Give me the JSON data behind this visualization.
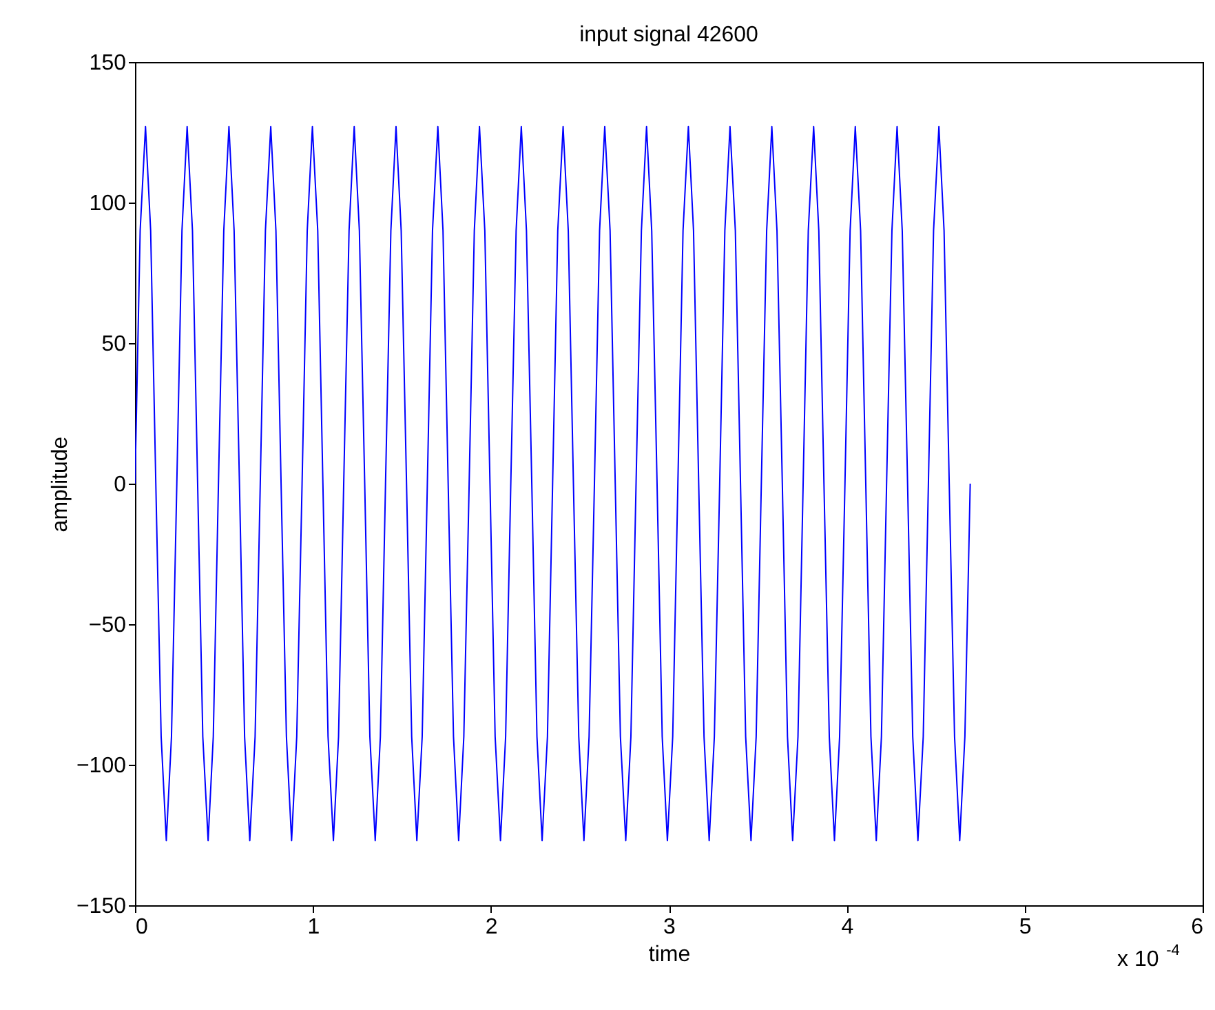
{
  "chart_data": {
    "type": "line",
    "title": "input signal 42600",
    "xlabel": "time",
    "ylabel": "amplitude",
    "xlim": [
      0,
      6
    ],
    "xticks": [
      0,
      1,
      2,
      3,
      4,
      5,
      6
    ],
    "ylim": [
      -150,
      150
    ],
    "yticks": [
      -150,
      -100,
      -50,
      0,
      50,
      100,
      150
    ],
    "grid": false,
    "marker": "none",
    "line_style": "solid",
    "annotations": [
      "x 10$^{-4}$"
    ],
    "x": [
      0,
      0.029,
      0.059,
      0.088,
      0.117,
      0.147,
      0.176,
      0.205,
      0.235,
      0.264,
      0.293,
      0.323,
      0.352,
      0.381,
      0.411,
      0.44,
      0.469,
      0.499,
      0.528,
      0.557,
      0.587,
      0.616,
      0.645,
      0.675,
      0.704,
      0.733,
      0.763,
      0.792,
      0.821,
      0.851,
      0.88,
      0.909,
      0.939,
      0.968,
      0.997,
      1.027,
      1.056,
      1.085,
      1.115,
      1.144,
      1.173,
      1.203,
      1.232,
      1.261,
      1.291,
      1.32,
      1.35,
      1.379,
      1.408,
      1.438,
      1.467,
      1.496,
      1.526,
      1.555,
      1.584,
      1.614,
      1.643,
      1.672,
      1.702,
      1.731,
      1.76,
      1.79,
      1.819,
      1.848,
      1.878,
      1.907,
      1.936,
      1.966,
      1.995,
      2.024,
      2.054,
      2.083,
      2.112,
      2.142,
      2.171,
      2.2,
      2.23,
      2.259,
      2.288,
      2.318,
      2.347,
      2.376,
      2.406,
      2.435,
      2.464,
      2.494,
      2.523,
      2.552,
      2.582,
      2.611,
      2.64,
      2.67,
      2.699,
      2.728,
      2.758,
      2.787,
      2.816,
      2.846,
      2.875,
      2.904,
      2.934,
      2.963,
      2.992,
      3.022,
      3.051,
      3.08,
      3.11,
      3.139,
      3.168,
      3.198,
      3.227,
      3.256,
      3.286,
      3.315,
      3.344,
      3.374,
      3.403,
      3.432,
      3.462,
      3.491,
      3.52,
      3.55,
      3.579,
      3.608,
      3.638,
      3.667,
      3.696,
      3.726,
      3.755,
      3.784,
      3.814,
      3.843,
      3.872,
      3.902,
      3.931,
      3.96,
      3.99,
      4.019,
      4.048,
      4.078,
      4.107,
      4.136,
      4.166,
      4.195,
      4.224,
      4.254,
      4.283,
      4.312,
      4.342,
      4.371,
      4.4,
      4.43,
      4.459,
      4.488,
      4.518,
      4.547,
      4.576,
      4.606,
      4.635,
      4.664,
      4.694
    ],
    "series": [
      {
        "color": "#0000ff",
        "values": [
          0,
          90,
          127,
          90,
          0,
          -90,
          -127,
          -90,
          0,
          90,
          127,
          90,
          0,
          -90,
          -127,
          -90,
          0,
          90,
          127,
          90,
          0,
          -90,
          -127,
          -90,
          0,
          90,
          127,
          90,
          0,
          -90,
          -127,
          -90,
          0,
          90,
          127,
          90,
          0,
          -90,
          -127,
          -90,
          0,
          90,
          127,
          90,
          0,
          -90,
          -127,
          -90,
          0,
          90,
          127,
          90,
          0,
          -90,
          -127,
          -90,
          0,
          90,
          127,
          90,
          0,
          -90,
          -127,
          -90,
          0,
          90,
          127,
          90,
          0,
          -90,
          -127,
          -90,
          0,
          90,
          127,
          90,
          0,
          -90,
          -127,
          -90,
          0,
          90,
          127,
          90,
          0,
          -90,
          -127,
          -90,
          0,
          90,
          127,
          90,
          0,
          -90,
          -127,
          -90,
          0,
          90,
          127,
          90,
          0,
          -90,
          -127,
          -90,
          0,
          90,
          127,
          90,
          0,
          -90,
          -127,
          -90,
          0,
          90,
          127,
          90,
          0,
          -90,
          -127,
          -90,
          0,
          90,
          127,
          90,
          0,
          -90,
          -127,
          -90,
          0,
          90,
          127,
          90,
          0,
          -90,
          -127,
          -90,
          0,
          90,
          127,
          90,
          0,
          -90,
          -127,
          -90,
          0,
          90,
          127,
          90,
          0,
          -90,
          -127,
          -90,
          0,
          90,
          127,
          90,
          0,
          -90,
          -127,
          -90,
          0
        ]
      }
    ]
  }
}
